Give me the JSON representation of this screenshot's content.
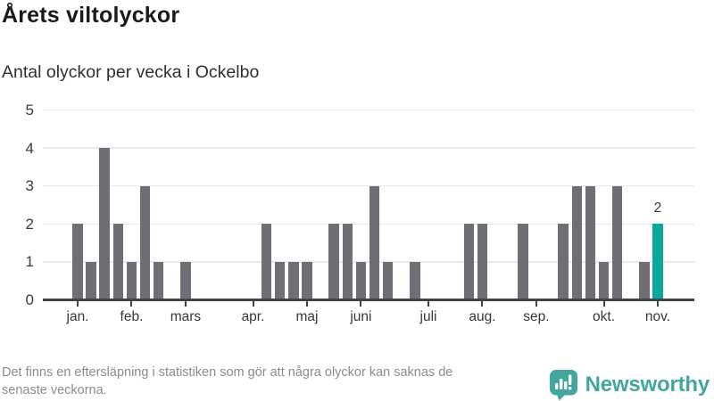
{
  "header": {
    "title": "Årets viltolyckor",
    "subtitle": "Antal olyckor per vecka i Ockelbo"
  },
  "footer": {
    "disclaimer_line1": "Det finns en eftersläpning i statistiken som gör att några olyckor kan saknas de",
    "disclaimer_line2": "senaste veckorna.",
    "brand": "Newsworthy"
  },
  "colors": {
    "bar": "#706d75",
    "highlight": "#09a79c",
    "grid": "#e9e8ea",
    "axis": "#45434a",
    "brand": "#43a79f",
    "title_text": "#1b1b1b",
    "muted_text": "#8c8c8c",
    "tick_text": "#3c3c3c"
  },
  "chart_data": {
    "type": "bar",
    "title": "Årets viltolyckor",
    "subtitle": "Antal olyckor per vecka i Ockelbo",
    "xlabel": "",
    "ylabel": "",
    "x_unit": "week-of-year",
    "ylim": [
      0,
      5
    ],
    "yticks": [
      0,
      1,
      2,
      3,
      4,
      5
    ],
    "grid": "horizontal",
    "legend": "none",
    "categories_weeks": [
      1,
      2,
      3,
      4,
      5,
      6,
      7,
      8,
      9,
      10,
      11,
      12,
      13,
      14,
      15,
      16,
      17,
      18,
      19,
      20,
      21,
      22,
      23,
      24,
      25,
      26,
      27,
      28,
      29,
      30,
      31,
      32,
      33,
      34,
      35,
      36,
      37,
      38,
      39,
      40,
      41,
      42,
      43,
      44
    ],
    "values": [
      2,
      1,
      4,
      2,
      1,
      3,
      1,
      0,
      1,
      0,
      0,
      0,
      0,
      0,
      2,
      1,
      1,
      1,
      0,
      2,
      2,
      1,
      3,
      1,
      0,
      1,
      0,
      0,
      0,
      2,
      2,
      0,
      0,
      2,
      0,
      0,
      2,
      3,
      3,
      1,
      3,
      0,
      1,
      2
    ],
    "highlight": {
      "week": 44,
      "value": 2,
      "label": "2"
    },
    "month_ticks": [
      {
        "label": "jan.",
        "week": 1
      },
      {
        "label": "feb.",
        "week": 5
      },
      {
        "label": "mars",
        "week": 9
      },
      {
        "label": "apr.",
        "week": 14
      },
      {
        "label": "maj",
        "week": 18
      },
      {
        "label": "juni",
        "week": 22
      },
      {
        "label": "juli",
        "week": 27
      },
      {
        "label": "aug.",
        "week": 31
      },
      {
        "label": "sep.",
        "week": 35
      },
      {
        "label": "okt.",
        "week": 40
      },
      {
        "label": "nov.",
        "week": 44
      }
    ]
  }
}
